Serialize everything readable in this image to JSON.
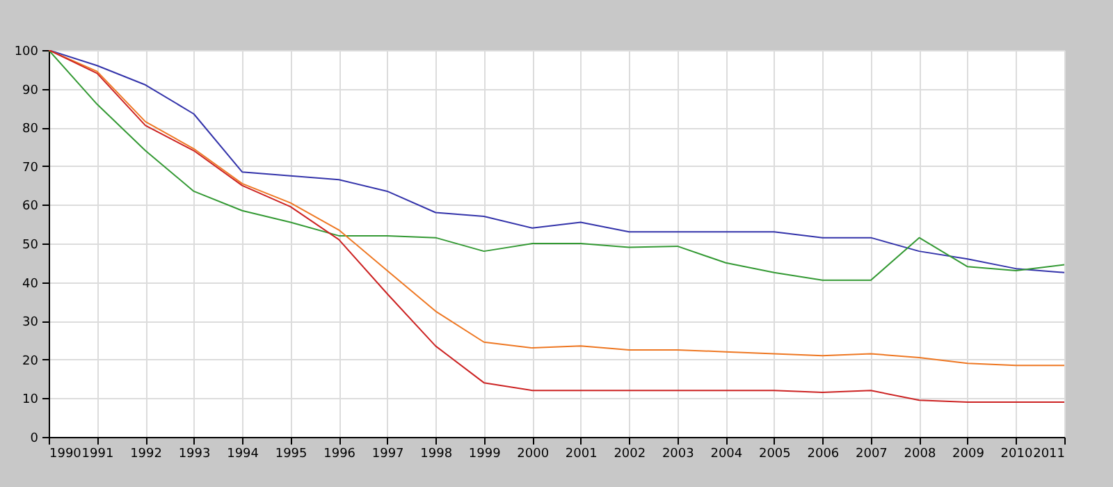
{
  "chart_data": {
    "type": "line",
    "x": [
      1990,
      1991,
      1992,
      1993,
      1994,
      1995,
      1996,
      1997,
      1998,
      1999,
      2000,
      2001,
      2002,
      2003,
      2004,
      2005,
      2006,
      2007,
      2008,
      2009,
      2010,
      2011
    ],
    "series": [
      {
        "color": "#3333aa",
        "values": [
          100,
          96,
          91,
          83.5,
          68.5,
          67.5,
          66.5,
          63.5,
          58,
          57,
          54,
          55.5,
          53,
          53,
          53,
          53,
          51.5,
          51.5,
          48,
          46,
          43.5,
          42.5
        ]
      },
      {
        "color": "#339933",
        "values": [
          100,
          86,
          74,
          63.5,
          58.5,
          55.5,
          52,
          52,
          51.5,
          48,
          50,
          50,
          49,
          49.3,
          45,
          42.5,
          40.5,
          40.5,
          51.5,
          44,
          43,
          44.5
        ]
      },
      {
        "color": "#ee7722",
        "values": [
          100,
          94.5,
          81.5,
          74.5,
          65.5,
          60.5,
          53.5,
          43,
          32.5,
          24.5,
          23,
          23.5,
          22.5,
          22.5,
          22,
          21.5,
          21,
          21.5,
          20.5,
          19,
          18.5,
          18.5
        ]
      },
      {
        "color": "#cc2222",
        "values": [
          100,
          94,
          80.5,
          74,
          65,
          59.5,
          51,
          37,
          23.5,
          14,
          12,
          12,
          12,
          12,
          12,
          12,
          11.5,
          12,
          9.5,
          9,
          9,
          9
        ]
      }
    ],
    "xlim": [
      1990,
      2011
    ],
    "xticks": [
      1990,
      1991,
      1992,
      1993,
      1994,
      1995,
      1996,
      1997,
      1998,
      1999,
      2000,
      2001,
      2002,
      2003,
      2004,
      2005,
      2006,
      2007,
      2008,
      2009,
      2010,
      2011
    ],
    "ylim": [
      0,
      100
    ],
    "yticks": [
      0,
      10,
      20,
      30,
      40,
      50,
      60,
      70,
      80,
      90,
      100
    ],
    "grid": true,
    "legend": false,
    "marker": "none",
    "line_style": "solid"
  }
}
